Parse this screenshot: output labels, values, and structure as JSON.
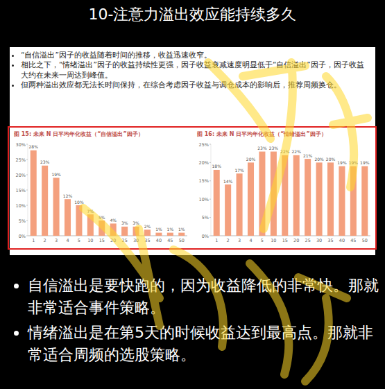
{
  "title": "10-注意力溢出效应能持续多久",
  "bullets": [
    "“自信溢出”因子的收益随着时间的推移，收益迅速收窄。",
    "相比之下，“情绪溢出”因子的收益持续性更强，因子收益衰减速度明显低于“自信溢出”因子，因子收益大约在未来一周达到峰值。",
    "但两种溢出效应都无法长时间保持，在综合考虑因子收益与调仓成本的影响后，推荐周频换仓。"
  ],
  "chart_data": [
    {
      "type": "bar",
      "title": "图 15: 未来 N 日平均年化收益（“自信溢出”因子）",
      "categories": [
        "1",
        "2",
        "3",
        "4",
        "5",
        "10",
        "15",
        "20",
        "25",
        "30",
        "35",
        "40",
        "45",
        "50"
      ],
      "values": [
        28,
        23,
        19,
        12,
        10,
        7,
        5,
        4,
        3,
        3,
        2,
        1,
        1,
        1
      ],
      "value_labels": [
        "28%",
        "23%",
        "19%",
        "12%",
        "10%",
        "7%",
        "5%",
        "4%",
        "3%",
        "3%",
        "2%",
        "1%",
        "1%",
        "1%"
      ],
      "color": "#f4a07e",
      "ylim": [
        0,
        30
      ],
      "yticks": [
        {
          "value": 0,
          "label": "0%"
        },
        {
          "value": 5,
          "label": "5%"
        },
        {
          "value": 10,
          "label": "10%"
        },
        {
          "value": 15,
          "label": "15%"
        },
        {
          "value": 20,
          "label": "20%"
        },
        {
          "value": 25,
          "label": "25%"
        },
        {
          "value": 30,
          "label": "30%"
        }
      ],
      "grid": false,
      "data_labels": true
    },
    {
      "type": "bar",
      "title": "图 16: 未来 N 日平均年化收益（“情绪溢出”因子）",
      "categories": [
        "1",
        "2",
        "3",
        "4",
        "5",
        "10",
        "15",
        "20",
        "25",
        "30",
        "35",
        "40",
        "45",
        "50"
      ],
      "values": [
        18,
        14,
        17,
        20,
        23,
        23,
        22,
        22,
        21,
        20,
        20,
        19,
        19,
        19
      ],
      "value_labels": [
        "18%",
        "14%",
        "17%",
        "20%",
        "23%",
        "23%",
        "22%",
        "22%",
        "21%",
        "20%",
        "20%",
        "19%",
        "19%",
        "19%"
      ],
      "color": "#f4a07e",
      "ylim": [
        0,
        25
      ],
      "yticks": [
        {
          "value": 0,
          "label": "0%"
        },
        {
          "value": 5,
          "label": "5%"
        },
        {
          "value": 10,
          "label": "10%"
        },
        {
          "value": 15,
          "label": "15%"
        },
        {
          "value": 20,
          "label": "20%"
        },
        {
          "value": 25,
          "label": "25%"
        }
      ],
      "grid": false,
      "data_labels": true
    }
  ],
  "notes": [
    "自信溢出是要快跑的，因为收益降低的非常快。那就非常适合事件策略。",
    "情绪溢出是在第5天的时候收益达到最高点。那就非常适合周频的选股策略。"
  ]
}
